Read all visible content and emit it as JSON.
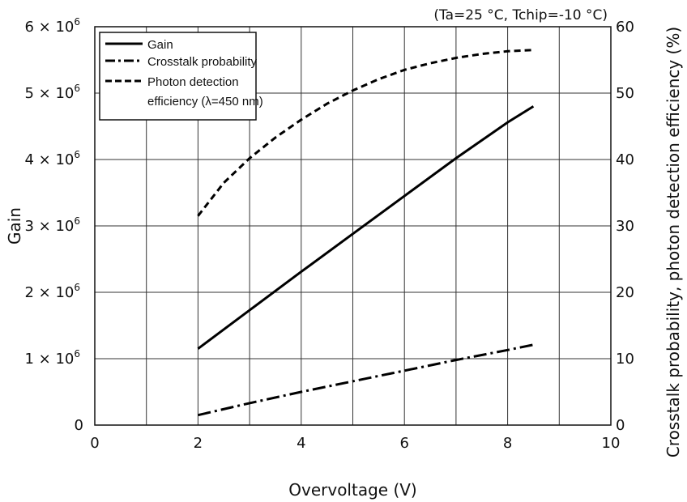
{
  "chart_data": {
    "type": "line",
    "title": "",
    "condition_note": "(Ta=25 °C, Tchip=-10 °C)",
    "xlabel": "Overvoltage (V)",
    "ylabel_left": "Gain",
    "ylabel_right": "Crosstalk probability, photon detection efficiency (%)",
    "xlim": [
      0,
      10
    ],
    "ylim_left": [
      0,
      6000000
    ],
    "ylim_right": [
      0,
      60
    ],
    "x_ticks": [
      "0",
      "2",
      "4",
      "6",
      "8",
      "10"
    ],
    "y_left_ticks": [
      {
        "mant": "0",
        "exp": ""
      },
      {
        "mant": "1 × 10",
        "exp": "6"
      },
      {
        "mant": "2 × 10",
        "exp": "6"
      },
      {
        "mant": "3 × 10",
        "exp": "6"
      },
      {
        "mant": "4 × 10",
        "exp": "6"
      },
      {
        "mant": "5 × 10",
        "exp": "6"
      },
      {
        "mant": "6 × 10",
        "exp": "6"
      }
    ],
    "y_right_ticks": [
      "0",
      "10",
      "20",
      "30",
      "40",
      "50",
      "60"
    ],
    "grid": true,
    "legend_position": "top-left",
    "series": [
      {
        "name": "Gain",
        "axis": "left",
        "style": "solid",
        "x": [
          2,
          3,
          4,
          5,
          6,
          7,
          8,
          8.5
        ],
        "y": [
          1150000,
          1730000,
          2310000,
          2880000,
          3450000,
          4020000,
          4560000,
          4800000
        ]
      },
      {
        "name": "Crosstalk probability",
        "axis": "right",
        "style": "dash-dot",
        "x": [
          2,
          3,
          4,
          5,
          6,
          7,
          8,
          8.5
        ],
        "y": [
          1.5,
          3.3,
          5.0,
          6.6,
          8.2,
          9.8,
          11.3,
          12.1
        ]
      },
      {
        "name": "Photon detection efficiency (λ=450 nm)",
        "legend_lines": [
          "Photon detection",
          "efficiency (λ=450 nm)"
        ],
        "axis": "right",
        "style": "dashed",
        "x": [
          2,
          2.5,
          3,
          3.5,
          4,
          4.5,
          5,
          5.5,
          6,
          6.5,
          7,
          7.5,
          8,
          8.5
        ],
        "y": [
          31.5,
          36.5,
          40.2,
          43.3,
          46.0,
          48.4,
          50.4,
          52.1,
          53.5,
          54.5,
          55.3,
          55.9,
          56.3,
          56.5
        ]
      }
    ]
  }
}
